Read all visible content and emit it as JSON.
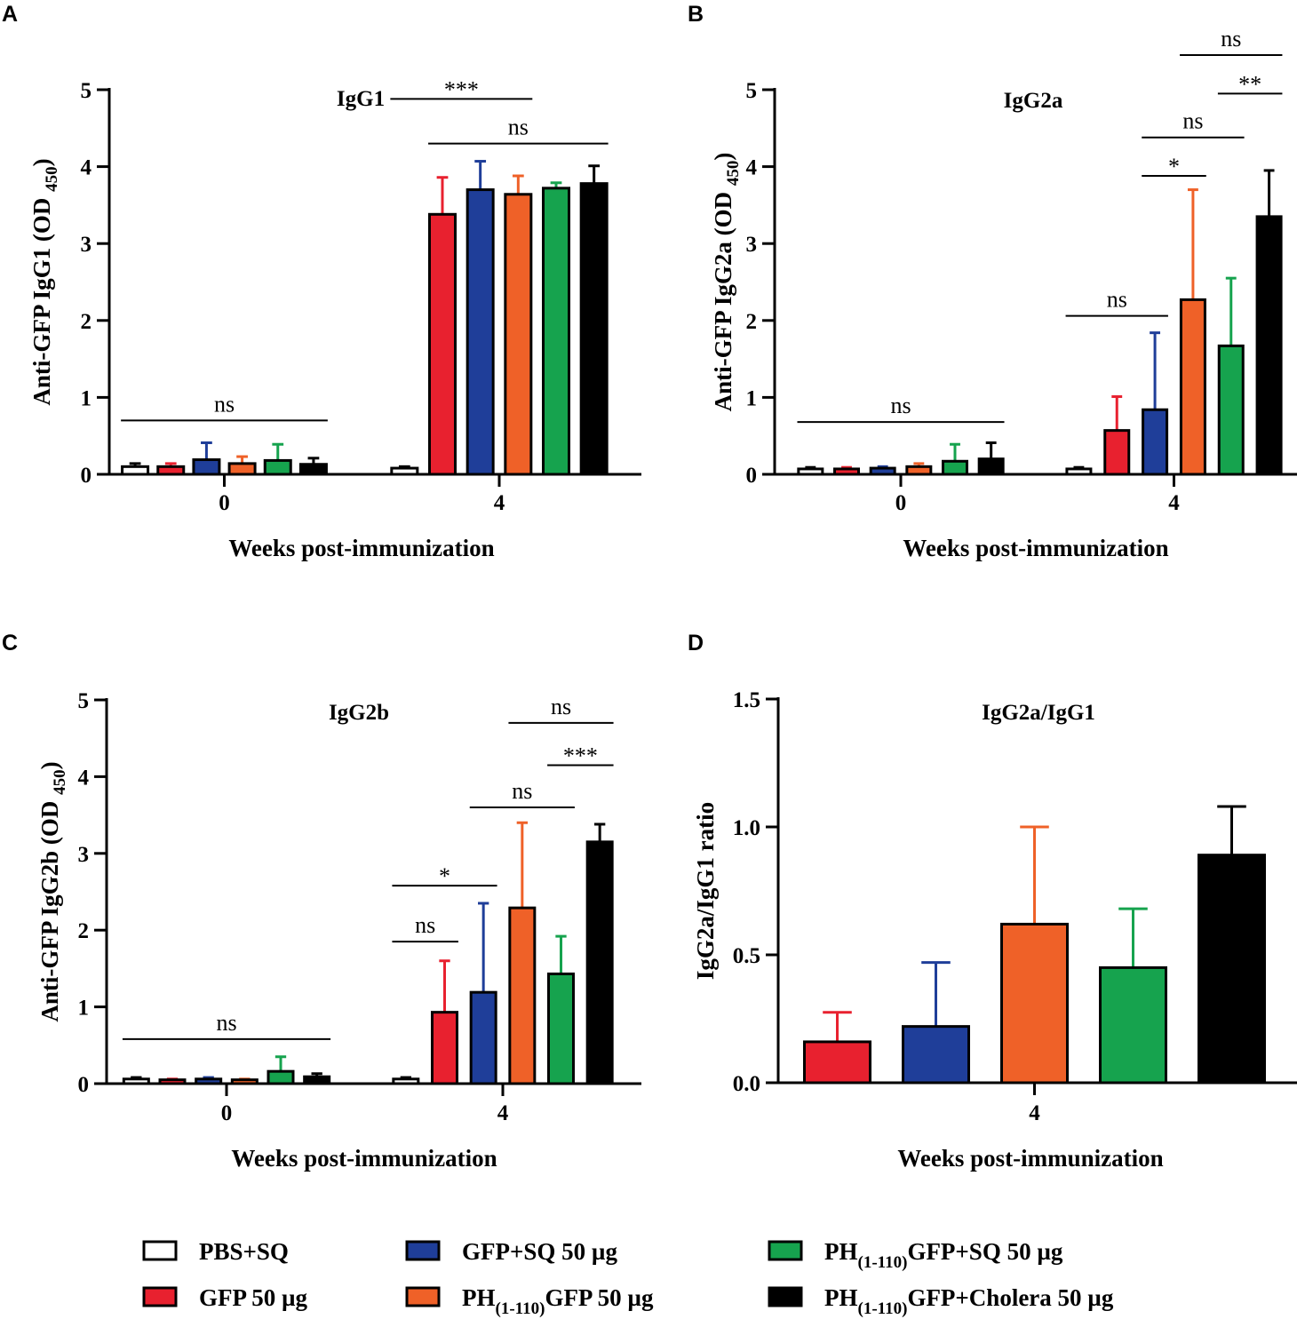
{
  "colors": {
    "pbs_sq": "#ffffff",
    "gfp": "#e8212f",
    "gfp_sq": "#1f3e99",
    "ph_gfp": "#ef6128",
    "ph_gfp_sq": "#16a34e",
    "ph_gfp_cholera": "#000000"
  },
  "legend": [
    {
      "key": "pbs_sq",
      "base": "PBS+SQ",
      "sub": "",
      "rest": ""
    },
    {
      "key": "gfp",
      "base": "GFP 50 µg",
      "sub": "",
      "rest": ""
    },
    {
      "key": "gfp_sq",
      "base": "GFP+SQ 50 µg",
      "sub": "",
      "rest": ""
    },
    {
      "key": "ph_gfp",
      "base": "PH",
      "sub": "(1-110)",
      "rest": "GFP 50 µg"
    },
    {
      "key": "ph_gfp_sq",
      "base": "PH",
      "sub": "(1-110)",
      "rest": "GFP+SQ 50 µg"
    },
    {
      "key": "ph_gfp_cholera",
      "base": "PH",
      "sub": "(1-110)",
      "rest": "GFP+Cholera 50 µg"
    }
  ],
  "chart_data": [
    {
      "panel": "A",
      "type": "bar",
      "title": "IgG1",
      "xlabel": "Weeks post-immunization",
      "ylabel": {
        "base": "Anti-GFP IgG1 (OD ",
        "sub": "450",
        "end": ")"
      },
      "ylim": [
        0,
        5
      ],
      "yticks": [
        "0",
        "1",
        "2",
        "3",
        "4",
        "5"
      ],
      "categories": [
        "0",
        "4"
      ],
      "series": [
        {
          "key": "pbs_sq",
          "values": [
            0.1,
            0.08
          ],
          "errors": [
            0.04,
            0.02
          ]
        },
        {
          "key": "gfp",
          "values": [
            0.1,
            3.38
          ],
          "errors": [
            0.04,
            0.48
          ]
        },
        {
          "key": "gfp_sq",
          "values": [
            0.19,
            3.7
          ],
          "errors": [
            0.22,
            0.37
          ]
        },
        {
          "key": "ph_gfp",
          "values": [
            0.14,
            3.64
          ],
          "errors": [
            0.09,
            0.24
          ]
        },
        {
          "key": "ph_gfp_sq",
          "values": [
            0.18,
            3.72
          ],
          "errors": [
            0.21,
            0.07
          ]
        },
        {
          "key": "ph_gfp_cholera",
          "values": [
            0.13,
            3.78
          ],
          "errors": [
            0.08,
            0.23
          ]
        }
      ],
      "brackets": [
        {
          "label": "ns",
          "from": [
            0,
            "pbs_sq"
          ],
          "to": [
            0,
            "ph_gfp_cholera"
          ],
          "y": 0.7
        },
        {
          "label": "***",
          "from": [
            1,
            "pbs_sq"
          ],
          "to": [
            1,
            "ph_gfp"
          ],
          "y": 4.88
        },
        {
          "label": "ns",
          "from": [
            1,
            "gfp"
          ],
          "to": [
            1,
            "ph_gfp_cholera"
          ],
          "y": 4.3
        }
      ]
    },
    {
      "panel": "B",
      "type": "bar",
      "title": "IgG2a",
      "xlabel": "Weeks post-immunization",
      "ylabel": {
        "base": "Anti-GFP IgG2a (OD ",
        "sub": "450",
        "end": ")"
      },
      "ylim": [
        0,
        5
      ],
      "yticks": [
        "0",
        "1",
        "2",
        "3",
        "4",
        "5"
      ],
      "categories": [
        "0",
        "4"
      ],
      "series": [
        {
          "key": "pbs_sq",
          "values": [
            0.07,
            0.07
          ],
          "errors": [
            0.02,
            0.02
          ]
        },
        {
          "key": "gfp",
          "values": [
            0.07,
            0.57
          ],
          "errors": [
            0.02,
            0.44
          ]
        },
        {
          "key": "gfp_sq",
          "values": [
            0.08,
            0.84
          ],
          "errors": [
            0.02,
            1.0
          ]
        },
        {
          "key": "ph_gfp",
          "values": [
            0.1,
            2.27
          ],
          "errors": [
            0.04,
            1.43
          ]
        },
        {
          "key": "ph_gfp_sq",
          "values": [
            0.17,
            1.67
          ],
          "errors": [
            0.22,
            0.88
          ]
        },
        {
          "key": "ph_gfp_cholera",
          "values": [
            0.2,
            3.35
          ],
          "errors": [
            0.21,
            0.6
          ]
        }
      ],
      "brackets": [
        {
          "label": "ns",
          "from": [
            0,
            "pbs_sq"
          ],
          "to": [
            0,
            "ph_gfp_cholera"
          ],
          "y": 0.68
        },
        {
          "label": "ns",
          "from": [
            1,
            "pbs_sq"
          ],
          "to": [
            1,
            "gfp_sq"
          ],
          "y": 2.06
        },
        {
          "label": "*",
          "from": [
            1,
            "gfp_sq"
          ],
          "to": [
            1,
            "ph_gfp"
          ],
          "y": 3.88
        },
        {
          "label": "ns",
          "from": [
            1,
            "gfp_sq"
          ],
          "to": [
            1,
            "ph_gfp_sq"
          ],
          "y": 4.38
        },
        {
          "label": "**",
          "from": [
            1,
            "ph_gfp_sq"
          ],
          "to": [
            1,
            "ph_gfp_cholera"
          ],
          "y": 4.95
        },
        {
          "label": "ns",
          "from": [
            1,
            "ph_gfp"
          ],
          "to": [
            1,
            "ph_gfp_cholera"
          ],
          "y": 5.45
        }
      ]
    },
    {
      "panel": "C",
      "type": "bar",
      "title": "IgG2b",
      "xlabel": "Weeks post-immunization",
      "ylabel": {
        "base": "Anti-GFP IgG2b (OD ",
        "sub": "450",
        "end": ")"
      },
      "ylim": [
        0,
        5
      ],
      "yticks": [
        "0",
        "1",
        "2",
        "3",
        "4",
        "5"
      ],
      "categories": [
        "0",
        "4"
      ],
      "series": [
        {
          "key": "pbs_sq",
          "values": [
            0.06,
            0.06
          ],
          "errors": [
            0.02,
            0.02
          ]
        },
        {
          "key": "gfp",
          "values": [
            0.05,
            0.93
          ],
          "errors": [
            0.01,
            0.67
          ]
        },
        {
          "key": "gfp_sq",
          "values": [
            0.06,
            1.19
          ],
          "errors": [
            0.02,
            1.16
          ]
        },
        {
          "key": "ph_gfp",
          "values": [
            0.05,
            2.29
          ],
          "errors": [
            0.01,
            1.11
          ]
        },
        {
          "key": "ph_gfp_sq",
          "values": [
            0.16,
            1.43
          ],
          "errors": [
            0.19,
            0.49
          ]
        },
        {
          "key": "ph_gfp_cholera",
          "values": [
            0.09,
            3.15
          ],
          "errors": [
            0.04,
            0.23
          ]
        }
      ],
      "brackets": [
        {
          "label": "ns",
          "from": [
            0,
            "pbs_sq"
          ],
          "to": [
            0,
            "ph_gfp_cholera"
          ],
          "y": 0.58
        },
        {
          "label": "ns",
          "from": [
            1,
            "pbs_sq"
          ],
          "to": [
            1,
            "gfp"
          ],
          "y": 1.85
        },
        {
          "label": "*",
          "from": [
            1,
            "pbs_sq"
          ],
          "to": [
            1,
            "gfp_sq"
          ],
          "y": 2.58
        },
        {
          "label": "ns",
          "from": [
            1,
            "gfp_sq"
          ],
          "to": [
            1,
            "ph_gfp_sq"
          ],
          "y": 3.6
        },
        {
          "label": "***",
          "from": [
            1,
            "ph_gfp_sq"
          ],
          "to": [
            1,
            "ph_gfp_cholera"
          ],
          "y": 4.15
        },
        {
          "label": "ns",
          "from": [
            1,
            "ph_gfp"
          ],
          "to": [
            1,
            "ph_gfp_cholera"
          ],
          "y": 4.7
        }
      ]
    },
    {
      "panel": "D",
      "type": "bar",
      "title": "IgG2a/IgG1",
      "xlabel": "Weeks post-immunization",
      "ylabel": {
        "base": "IgG2a/IgG1 ratio",
        "sub": "",
        "end": ""
      },
      "ylim": [
        0,
        1.5
      ],
      "yticks": [
        "0.0",
        "0.5",
        "1.0",
        "1.5"
      ],
      "categories": [
        "4"
      ],
      "series": [
        {
          "key": "gfp",
          "values": [
            0.16
          ],
          "errors": [
            0.115
          ]
        },
        {
          "key": "gfp_sq",
          "values": [
            0.22
          ],
          "errors": [
            0.25
          ]
        },
        {
          "key": "ph_gfp",
          "values": [
            0.62
          ],
          "errors": [
            0.38
          ]
        },
        {
          "key": "ph_gfp_sq",
          "values": [
            0.45
          ],
          "errors": [
            0.23
          ]
        },
        {
          "key": "ph_gfp_cholera",
          "values": [
            0.89
          ],
          "errors": [
            0.19
          ]
        }
      ],
      "brackets": []
    }
  ]
}
